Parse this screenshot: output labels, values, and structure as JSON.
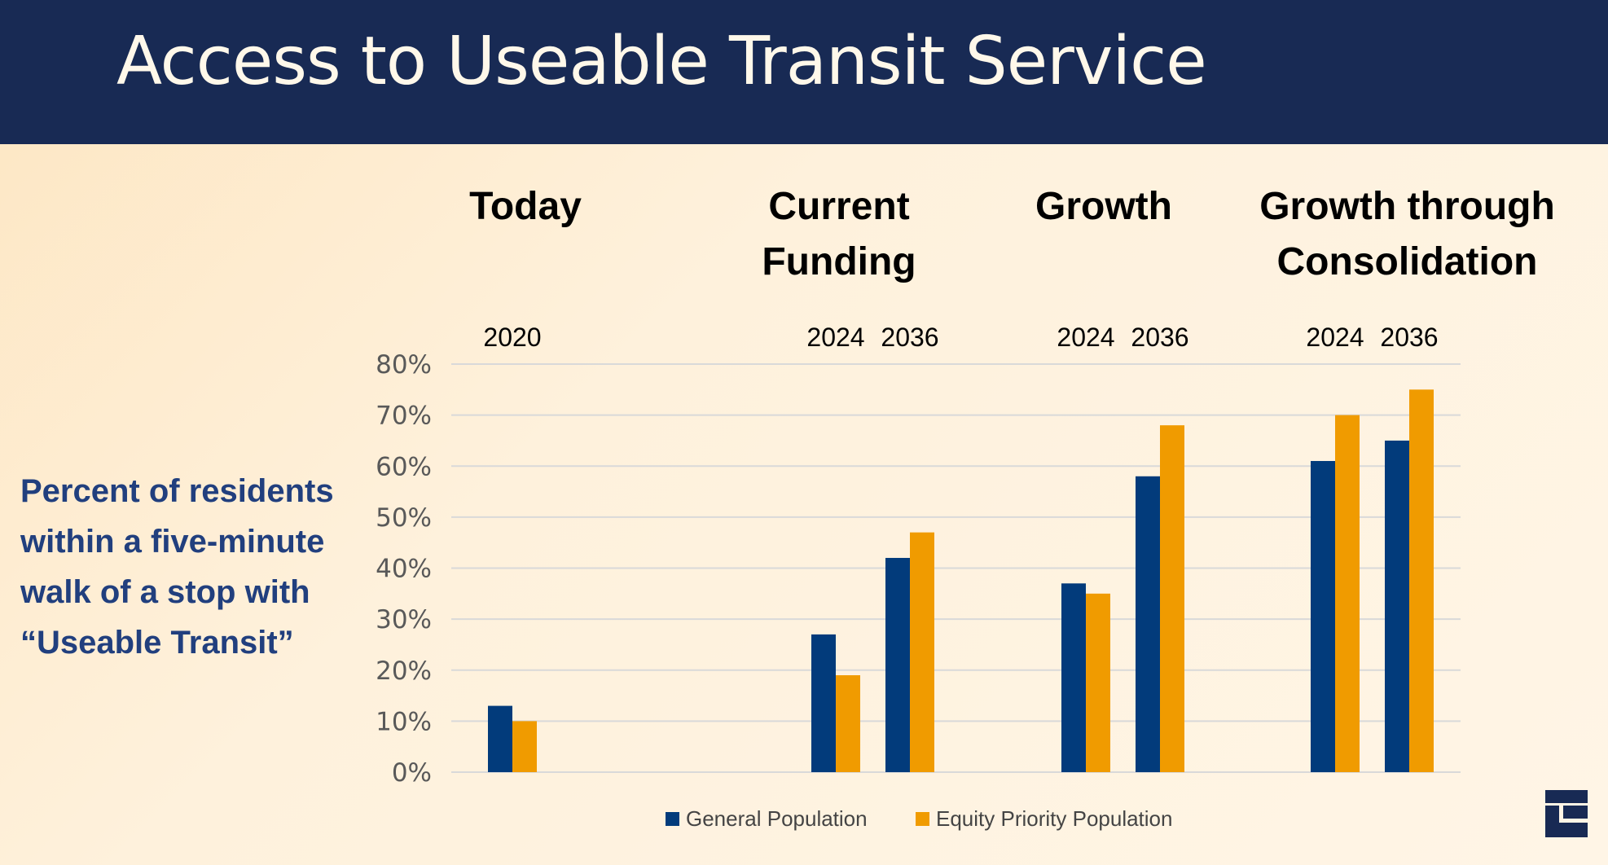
{
  "title": "Access to Useable Transit Service",
  "side_label": "Percent of residents within a five-minute walk of a stop with “Useable Transit”",
  "colors": {
    "header": "#182a54",
    "general": "#023b7b",
    "equity": "#f09b00"
  },
  "chart_data": {
    "type": "bar",
    "groups": [
      {
        "label": "Today",
        "categories": [
          "2020"
        ]
      },
      {
        "label": "Current Funding",
        "categories": [
          "2024",
          "2036"
        ]
      },
      {
        "label": "Growth",
        "categories": [
          "2024",
          "2036"
        ]
      },
      {
        "label": "Growth through Consolidation",
        "categories": [
          "2024",
          "2036"
        ]
      }
    ],
    "categories": [
      "2020",
      "2024",
      "2036",
      "2024",
      "2036",
      "2024",
      "2036"
    ],
    "series": [
      {
        "name": "General Population",
        "values": [
          13,
          27,
          42,
          37,
          58,
          61,
          65
        ]
      },
      {
        "name": "Equity Priority Population",
        "values": [
          10,
          19,
          47,
          35,
          68,
          70,
          75
        ]
      }
    ],
    "yticks": [
      "0%",
      "10%",
      "20%",
      "30%",
      "40%",
      "50%",
      "60%",
      "70%",
      "80%"
    ],
    "ylim": [
      0,
      80
    ],
    "grid": true,
    "legend": "bottom"
  }
}
